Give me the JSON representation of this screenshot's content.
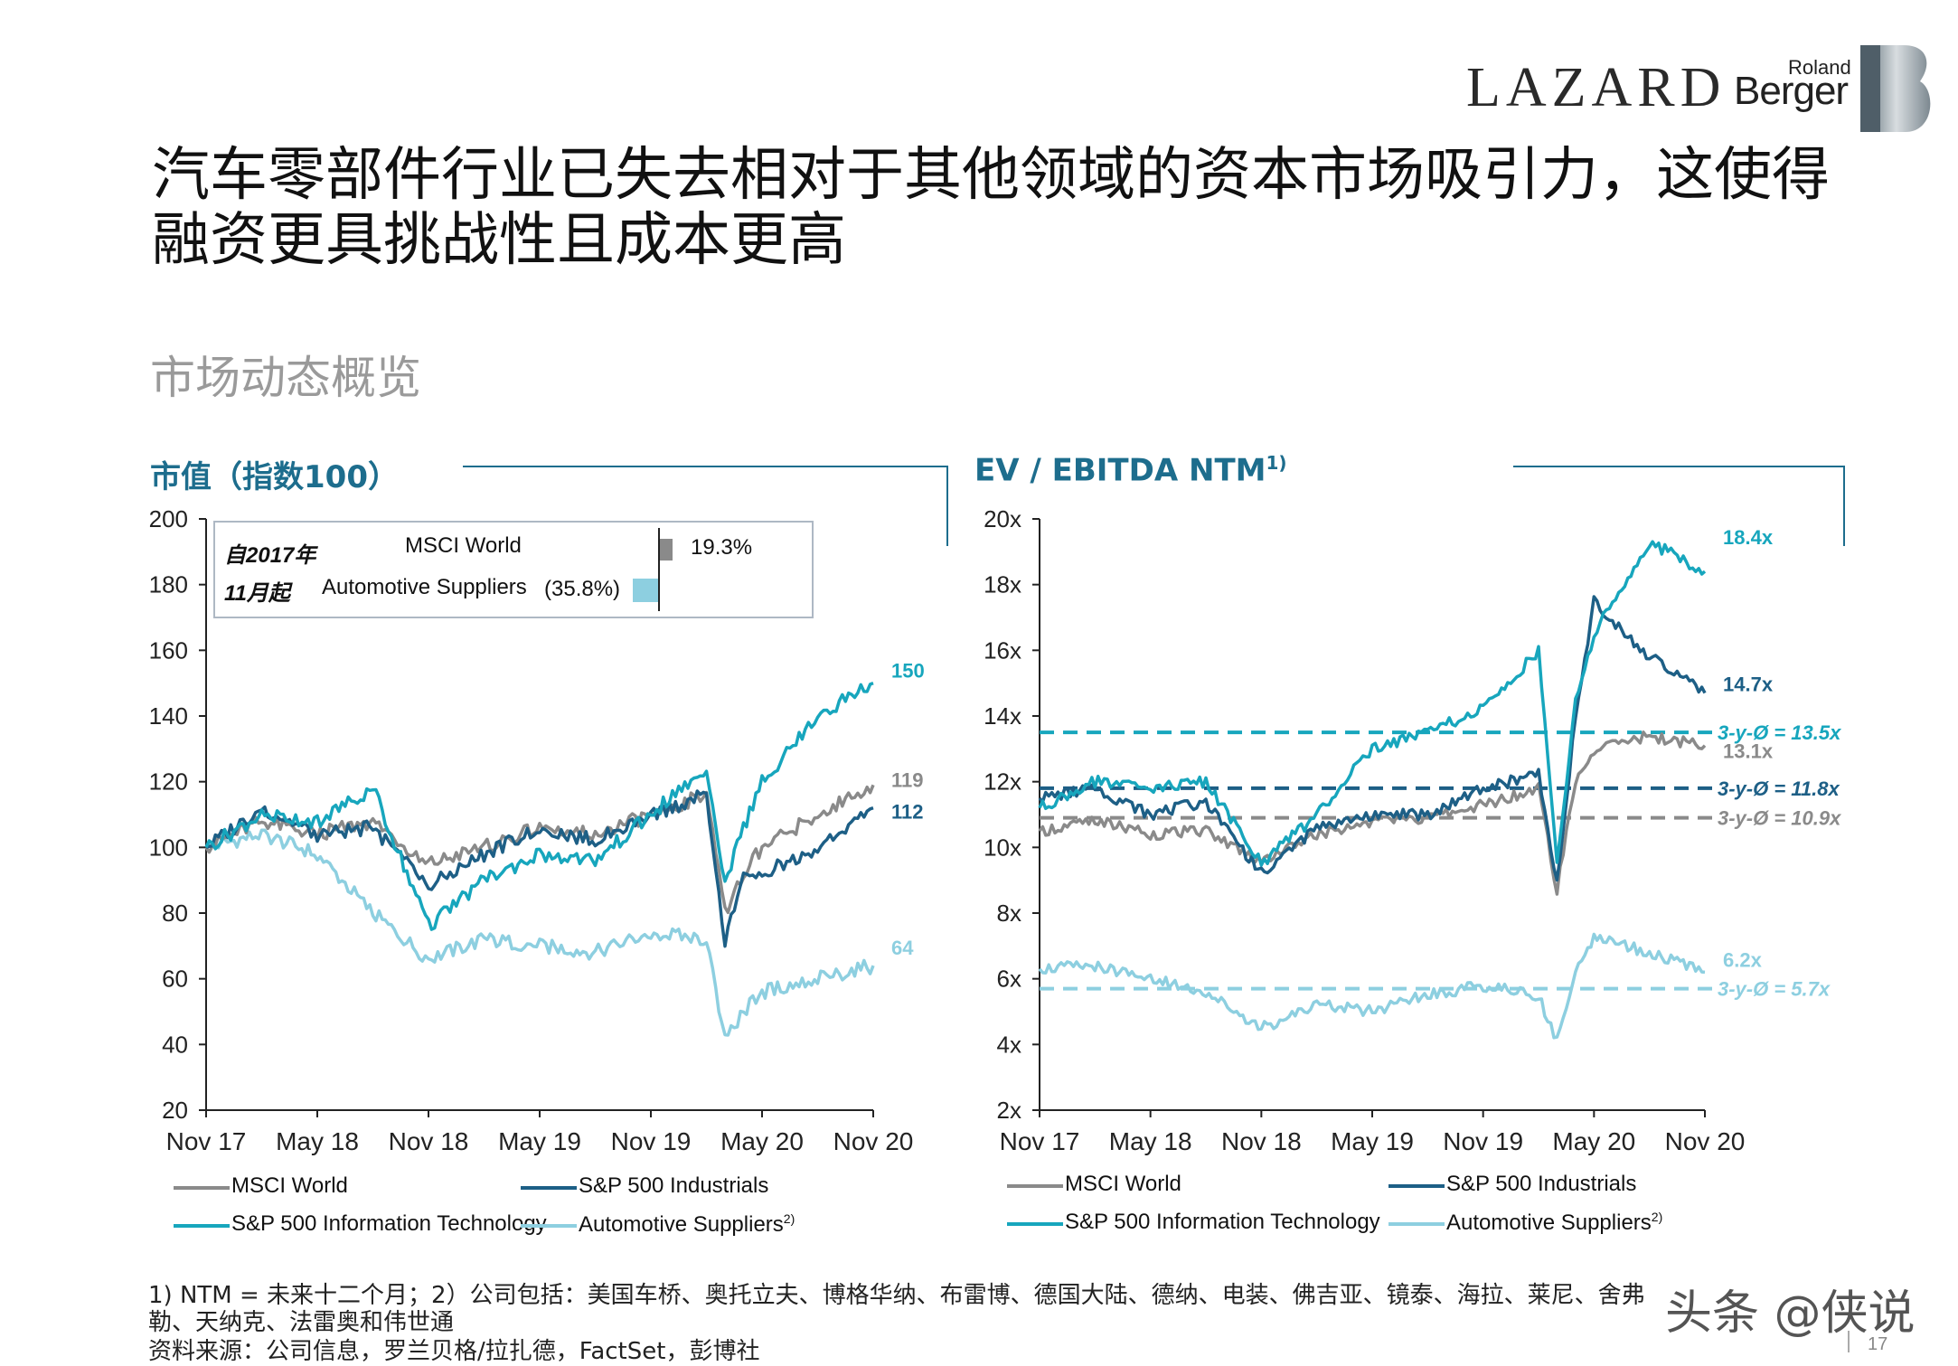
{
  "logos": {
    "lazard": "LAZARD",
    "roland": "Roland",
    "berger": "Berger"
  },
  "title": "汽车零部件行业已失去相对于其他领域的资本市场吸引力，这使得融资更具挑战性且成本更高",
  "subtitle": "市场动态概览",
  "colors": {
    "msci": "#8a8a8a",
    "industrials": "#1d5f86",
    "it": "#17a6bd",
    "auto": "#8dcfe0",
    "title_blue": "#1d6d8d"
  },
  "panels": {
    "left": {
      "title": "市值（指数100）"
    },
    "right": {
      "title": "EV / EBITDA NTM",
      "title_sup": "1)"
    }
  },
  "inset": {
    "label_line1": "自2017年",
    "label_line2": "11月起",
    "row1_name": "MSCI World",
    "row1_value": "19.3%",
    "row2_name": "Automotive Suppliers",
    "row2_value": "(35.8%)"
  },
  "legend": {
    "msci": "MSCI World",
    "industrials": "S&P 500 Industrials",
    "it": "S&P 500 Information Technology",
    "auto": "Automotive Suppliers",
    "auto_sup": "2)"
  },
  "chart_data": [
    {
      "type": "line",
      "title": "市值（指数100）",
      "x_ticks": [
        "Nov 17",
        "May 18",
        "Nov 18",
        "May 19",
        "Nov 19",
        "May 20",
        "Nov 20"
      ],
      "y_ticks": [
        "200",
        "180",
        "160",
        "140",
        "120",
        "100",
        "80",
        "60",
        "40",
        "20"
      ],
      "ylim": [
        20,
        200
      ],
      "x": [
        "Nov 17",
        "Feb 18",
        "May 18",
        "Aug 18",
        "Nov 18",
        "Feb 19",
        "May 19",
        "Aug 19",
        "Nov 19",
        "Feb 20",
        "Mar 20",
        "Apr 20",
        "May 20",
        "Aug 20",
        "Nov 20"
      ],
      "series": [
        {
          "name": "MSCI World",
          "values": [
            100,
            108,
            104,
            108,
            95,
            100,
            106,
            104,
            110,
            116,
            80,
            92,
            100,
            110,
            119
          ]
        },
        {
          "name": "S&P 500 Industrials",
          "values": [
            100,
            112,
            104,
            106,
            88,
            98,
            106,
            102,
            110,
            116,
            72,
            90,
            92,
            100,
            112
          ]
        },
        {
          "name": "S&P 500 Information Technology",
          "values": [
            100,
            110,
            108,
            118,
            76,
            90,
            98,
            96,
            110,
            124,
            90,
            106,
            120,
            140,
            150
          ]
        },
        {
          "name": "Automotive Suppliers",
          "values": [
            100,
            104,
            98,
            80,
            66,
            72,
            70,
            68,
            74,
            72,
            42,
            50,
            56,
            60,
            64
          ]
        }
      ],
      "end_labels": [
        {
          "series": "S&P 500 Information Technology",
          "text": "150"
        },
        {
          "series": "MSCI World",
          "text": "119"
        },
        {
          "series": "S&P 500 Industrials",
          "text": "112"
        },
        {
          "series": "Automotive Suppliers",
          "text": "64"
        }
      ],
      "inset_bars": [
        {
          "name": "MSCI World",
          "value": 19.3
        },
        {
          "name": "Automotive Suppliers",
          "value": -35.8
        }
      ]
    },
    {
      "type": "line",
      "title": "EV / EBITDA NTM",
      "x_ticks": [
        "Nov 17",
        "May 18",
        "Nov 18",
        "May 19",
        "Nov 19",
        "May 20",
        "Nov 20"
      ],
      "y_ticks": [
        "20x",
        "18x",
        "16x",
        "14x",
        "12x",
        "10x",
        "8x",
        "6x",
        "4x",
        "2x"
      ],
      "ylim": [
        2,
        20
      ],
      "x": [
        "Nov 17",
        "Feb 18",
        "May 18",
        "Aug 18",
        "Nov 18",
        "Feb 19",
        "May 19",
        "Aug 19",
        "Nov 19",
        "Feb 20",
        "Mar 20",
        "Apr 20",
        "May 20",
        "Aug 20",
        "Nov 20"
      ],
      "series": [
        {
          "name": "MSCI World",
          "values": [
            10.5,
            10.8,
            10.4,
            10.5,
            9.6,
            10.4,
            10.8,
            10.9,
            11.3,
            11.8,
            8.7,
            12.0,
            13.0,
            13.4,
            13.1
          ]
        },
        {
          "name": "S&P 500 Industrials",
          "values": [
            11.5,
            11.8,
            11.0,
            11.4,
            9.2,
            10.6,
            11.0,
            11.0,
            11.8,
            12.2,
            9.0,
            14.0,
            17.5,
            15.8,
            14.7
          ]
        },
        {
          "name": "S&P 500 Information Technology",
          "values": [
            11.2,
            12.0,
            11.8,
            12.0,
            9.5,
            11.0,
            13.0,
            13.5,
            14.2,
            16.0,
            9.5,
            14.5,
            16.5,
            19.3,
            18.4
          ]
        },
        {
          "name": "Automotive Suppliers",
          "values": [
            6.3,
            6.4,
            6.0,
            5.6,
            4.5,
            5.2,
            5.0,
            5.5,
            5.8,
            5.5,
            4.1,
            6.2,
            7.3,
            6.8,
            6.2
          ]
        }
      ],
      "end_labels": [
        {
          "series": "S&P 500 Information Technology",
          "text": "18.4x"
        },
        {
          "series": "S&P 500 Industrials",
          "text": "14.7x"
        },
        {
          "series": "MSCI World",
          "text": "13.1x"
        },
        {
          "series": "Automotive Suppliers",
          "text": "6.2x"
        }
      ],
      "averages": [
        {
          "series": "S&P 500 Information Technology",
          "value": 13.5,
          "text": "3-y-Ø = 13.5x"
        },
        {
          "series": "S&P 500 Industrials",
          "value": 11.8,
          "text": "3-y-Ø = 11.8x"
        },
        {
          "series": "MSCI World",
          "value": 10.9,
          "text": "3-y-Ø = 10.9x"
        },
        {
          "series": "Automotive Suppliers",
          "value": 5.7,
          "text": "3-y-Ø = 5.7x"
        }
      ]
    }
  ],
  "footnotes": {
    "line1": "1) NTM = 未来十二个月；2）公司包括：美国车桥、奥托立夫、博格华纳、布雷博、德国大陆、德纳、电装、佛吉亚、镜泰、海拉、莱尼、舍弗",
    "line2": "勒、天纳克、法雷奥和伟世通",
    "line3": "资料来源：公司信息，罗兰贝格/拉扎德，FactSet，彭博社"
  },
  "watermark": "头条 @侠说",
  "page_number": "17"
}
